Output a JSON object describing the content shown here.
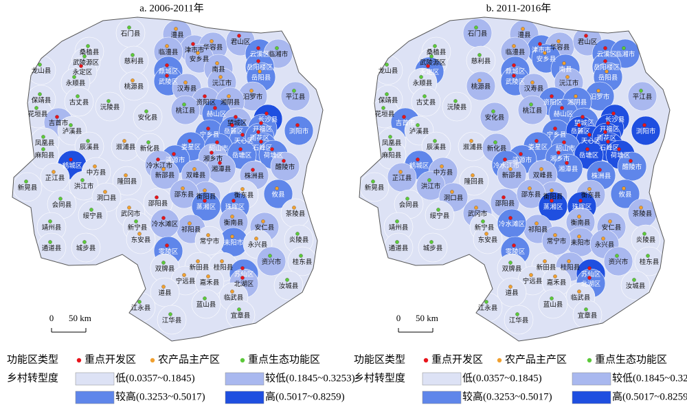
{
  "maps": [
    {
      "title": "a. 2006-2011年",
      "levels": [
        0,
        1,
        1,
        1,
        1,
        1,
        2,
        1,
        0,
        0,
        0,
        0,
        1,
        1,
        2,
        2,
        0,
        0,
        2,
        2,
        0,
        1,
        1,
        1,
        1,
        0,
        0,
        0,
        1,
        1,
        2,
        0,
        1,
        0,
        0,
        1,
        1,
        3,
        2,
        2,
        2,
        2,
        0,
        0,
        0,
        2,
        2,
        0,
        2,
        2,
        2,
        0,
        2,
        1,
        2,
        2,
        3,
        0,
        1,
        1,
        1,
        0,
        0,
        0,
        1,
        1,
        1,
        0,
        0,
        0,
        1,
        2,
        1,
        0,
        0,
        0,
        2,
        2,
        0,
        0,
        1,
        1,
        0,
        0,
        1,
        2,
        0,
        1,
        0,
        0,
        0,
        0,
        0,
        2,
        0,
        0,
        0,
        1,
        0,
        0,
        0,
        2,
        1,
        0,
        0,
        0,
        0,
        0,
        0,
        0
      ]
    },
    {
      "title": "b. 2011-2016年",
      "levels": [
        1,
        1,
        2,
        1,
        1,
        1,
        2,
        2,
        0,
        0,
        0,
        2,
        2,
        2,
        2,
        2,
        0,
        0,
        2,
        2,
        1,
        1,
        1,
        2,
        1,
        0,
        0,
        0,
        2,
        2,
        2,
        0,
        2,
        0,
        1,
        1,
        2,
        3,
        3,
        2,
        3,
        3,
        0,
        0,
        0,
        3,
        3,
        1,
        2,
        2,
        3,
        0,
        2,
        2,
        3,
        3,
        2,
        1,
        2,
        2,
        2,
        1,
        1,
        0,
        1,
        1,
        2,
        0,
        1,
        1,
        1,
        2,
        1,
        0,
        1,
        1,
        3,
        3,
        0,
        0,
        1,
        1,
        1,
        0,
        2,
        1,
        1,
        1,
        0,
        0,
        0,
        0,
        1,
        2,
        0,
        0,
        1,
        1,
        0,
        0,
        0,
        3,
        2,
        0,
        0,
        0,
        0,
        0,
        0,
        0
      ]
    }
  ],
  "county_names": [
    "石门县",
    "澧县",
    "津市市",
    "临澧县",
    "华容县",
    "君山区",
    "云溪区",
    "临湘市",
    "桑植县",
    "慈利县",
    "武陵源区",
    "永定区",
    "安乡县",
    "南县",
    "岳阳楼区",
    "岳阳县",
    "龙山县",
    "永顺县",
    "鼎城区",
    "武陵区",
    "桃源县",
    "汉寿县",
    "沅江市",
    "汨罗市",
    "平江县",
    "保靖县",
    "古丈县",
    "沅陵县",
    "资阳区",
    "湘阴县",
    "赫山区",
    "花垣县",
    "吉首市",
    "泸溪县",
    "安化县",
    "桃江县",
    "望城区",
    "长沙县",
    "浏阳市",
    "宁乡县",
    "岳麓区",
    "开福区",
    "凤凰县",
    "辰溪县",
    "溆浦县",
    "天心区",
    "雨花区",
    "新化县",
    "娄星区",
    "韶山市",
    "石峰区",
    "麻阳县",
    "涟源市",
    "湘乡市",
    "岳塘区",
    "荷塘区",
    "鹤城区",
    "中方县",
    "冷水江市",
    "湘潭县",
    "醴陵市",
    "芷江县",
    "洪江市",
    "隆回县",
    "新邵县",
    "双峰县",
    "株洲县",
    "新晃县",
    "洞口县",
    "邵阳县",
    "衡阳县",
    "攸县",
    "邵东县",
    "会同县",
    "武冈市",
    "衡东县",
    "蒸湘区",
    "珠晖区",
    "绥宁县",
    "新宁县",
    "祁阳县",
    "衡南县",
    "茶陵县",
    "靖州县",
    "冷水滩区",
    "耒阳市",
    "常宁市",
    "安仁县",
    "炎陵县",
    "通道县",
    "城步县",
    "东安县",
    "永兴县",
    "零陵区",
    "双牌县",
    "新田县",
    "桂阳县",
    "资兴市",
    "桂东县",
    "宁远县",
    "嘉禾县",
    "苏仙区",
    "北湖区",
    "汝城县",
    "道县",
    "临武县",
    "蓝山县",
    "江永县",
    "江华县",
    "宜章县"
  ],
  "function_type": [
    2,
    1,
    0,
    1,
    1,
    0,
    0,
    2,
    2,
    2,
    2,
    0,
    1,
    1,
    0,
    1,
    2,
    2,
    0,
    0,
    1,
    1,
    1,
    1,
    2,
    2,
    2,
    2,
    0,
    1,
    0,
    2,
    0,
    2,
    2,
    2,
    0,
    0,
    0,
    0,
    0,
    0,
    2,
    2,
    1,
    0,
    0,
    2,
    0,
    0,
    0,
    2,
    0,
    0,
    0,
    0,
    0,
    1,
    0,
    0,
    0,
    1,
    2,
    1,
    1,
    1,
    0,
    2,
    1,
    0,
    1,
    1,
    1,
    2,
    1,
    1,
    0,
    0,
    2,
    2,
    1,
    1,
    1,
    2,
    0,
    1,
    1,
    1,
    2,
    2,
    2,
    1,
    1,
    0,
    2,
    1,
    1,
    2,
    2,
    1,
    1,
    0,
    0,
    2,
    1,
    1,
    2,
    2,
    2,
    2
  ],
  "scale": {
    "zero": "0",
    "distance": "50 km"
  },
  "legend": {
    "function_title": "功能区类型",
    "function_types": [
      {
        "name": "重点开发区",
        "color": "#e8141b"
      },
      {
        "name": "农产品主产区",
        "color": "#f0a030"
      },
      {
        "name": "重点生态功能区",
        "color": "#5cc93a"
      }
    ],
    "level_title": "乡村转型度",
    "levels": [
      {
        "label": "低(0.0357~0.1845)",
        "color": "#dde2f5"
      },
      {
        "label": "较低(0.1845~0.3253)",
        "color": "#a9b8ef"
      },
      {
        "label": "较高(0.3253~0.5017)",
        "color": "#5f86ea"
      },
      {
        "label": "高(0.5017~0.8259)",
        "color": "#1f4fe0"
      }
    ]
  }
}
